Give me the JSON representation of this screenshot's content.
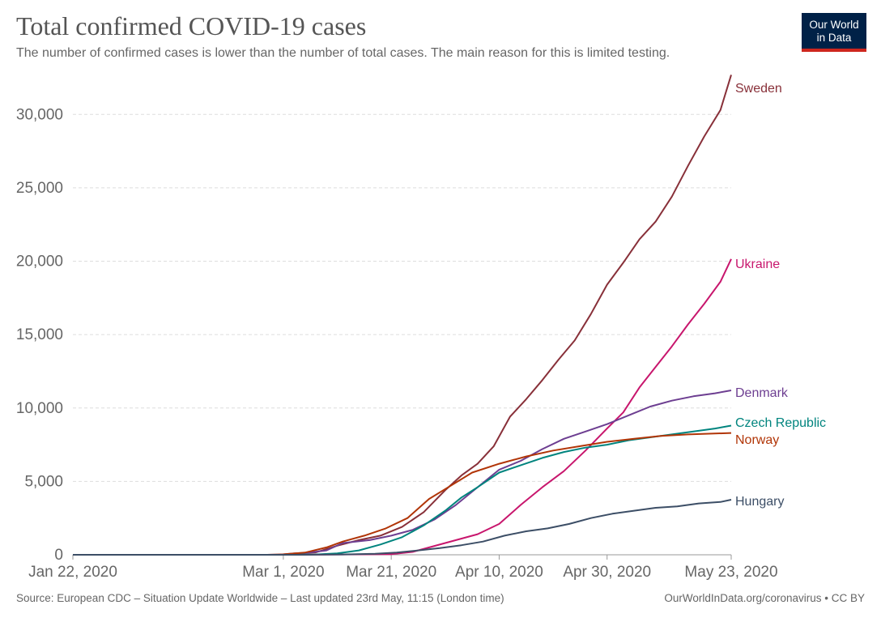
{
  "header": {
    "title": "Total confirmed COVID-19 cases",
    "subtitle": "The number of confirmed cases is lower than the number of total cases. The main reason for this is limited testing."
  },
  "logo": {
    "line1": "Our World",
    "line2": "in Data",
    "bg_color": "#002147",
    "accent_color": "#ce261e"
  },
  "footer": {
    "source": "Source: European CDC – Situation Update Worldwide – Last updated 23rd May, 11:15 (London time)",
    "link": "OurWorldInData.org/coronavirus • CC BY"
  },
  "chart_data": {
    "type": "line",
    "title": "Total confirmed COVID-19 cases",
    "xlabel": "",
    "ylabel": "",
    "x_type": "date",
    "xlim": [
      "2020-01-22",
      "2020-05-23"
    ],
    "ylim": [
      0,
      32500
    ],
    "grid": "horizontal dashed",
    "y_ticks": [
      {
        "value": 0,
        "label": "0"
      },
      {
        "value": 5000,
        "label": "5,000"
      },
      {
        "value": 10000,
        "label": "10,000"
      },
      {
        "value": 15000,
        "label": "15,000"
      },
      {
        "value": 20000,
        "label": "20,000"
      },
      {
        "value": 25000,
        "label": "25,000"
      },
      {
        "value": 30000,
        "label": "30,000"
      }
    ],
    "x_ticks": [
      {
        "date": "2020-01-22",
        "label": "Jan 22, 2020"
      },
      {
        "date": "2020-03-01",
        "label": "Mar 1, 2020"
      },
      {
        "date": "2020-03-21",
        "label": "Mar 21, 2020"
      },
      {
        "date": "2020-04-10",
        "label": "Apr 10, 2020"
      },
      {
        "date": "2020-04-30",
        "label": "Apr 30, 2020"
      },
      {
        "date": "2020-05-23",
        "label": "May 23, 2020"
      }
    ],
    "legend": "inline labels at line ends (right)",
    "series": [
      {
        "name": "Sweden",
        "color": "#883039",
        "points": [
          [
            "2020-01-22",
            0
          ],
          [
            "2020-02-29",
            0
          ],
          [
            "2020-03-03",
            100
          ],
          [
            "2020-03-07",
            160
          ],
          [
            "2020-03-11",
            620
          ],
          [
            "2020-03-15",
            1000
          ],
          [
            "2020-03-19",
            1300
          ],
          [
            "2020-03-23",
            1900
          ],
          [
            "2020-03-27",
            2900
          ],
          [
            "2020-03-31",
            4400
          ],
          [
            "2020-04-03",
            5400
          ],
          [
            "2020-04-06",
            6200
          ],
          [
            "2020-04-09",
            7400
          ],
          [
            "2020-04-12",
            9400
          ],
          [
            "2020-04-15",
            10600
          ],
          [
            "2020-04-18",
            11900
          ],
          [
            "2020-04-21",
            13300
          ],
          [
            "2020-04-24",
            14600
          ],
          [
            "2020-04-27",
            16400
          ],
          [
            "2020-04-30",
            18400
          ],
          [
            "2020-05-03",
            19900
          ],
          [
            "2020-05-06",
            21500
          ],
          [
            "2020-05-09",
            22700
          ],
          [
            "2020-05-12",
            24400
          ],
          [
            "2020-05-15",
            26500
          ],
          [
            "2020-05-18",
            28500
          ],
          [
            "2020-05-21",
            30300
          ],
          [
            "2020-05-23",
            32700
          ]
        ]
      },
      {
        "name": "Ukraine",
        "color": "#c8166d",
        "points": [
          [
            "2020-01-22",
            0
          ],
          [
            "2020-03-03",
            0
          ],
          [
            "2020-03-15",
            30
          ],
          [
            "2020-03-21",
            40
          ],
          [
            "2020-03-25",
            200
          ],
          [
            "2020-03-29",
            600
          ],
          [
            "2020-04-02",
            1000
          ],
          [
            "2020-04-06",
            1400
          ],
          [
            "2020-04-10",
            2100
          ],
          [
            "2020-04-14",
            3400
          ],
          [
            "2020-04-18",
            4600
          ],
          [
            "2020-04-22",
            5700
          ],
          [
            "2020-04-26",
            7100
          ],
          [
            "2020-04-30",
            8600
          ],
          [
            "2020-05-03",
            9700
          ],
          [
            "2020-05-06",
            11400
          ],
          [
            "2020-05-09",
            12800
          ],
          [
            "2020-05-12",
            14200
          ],
          [
            "2020-05-15",
            15700
          ],
          [
            "2020-05-18",
            17100
          ],
          [
            "2020-05-21",
            18600
          ],
          [
            "2020-05-23",
            20150
          ]
        ]
      },
      {
        "name": "Denmark",
        "color": "#6d3e91",
        "points": [
          [
            "2020-01-22",
            0
          ],
          [
            "2020-02-27",
            0
          ],
          [
            "2020-03-03",
            30
          ],
          [
            "2020-03-09",
            300
          ],
          [
            "2020-03-12",
            800
          ],
          [
            "2020-03-17",
            1000
          ],
          [
            "2020-03-21",
            1300
          ],
          [
            "2020-03-25",
            1700
          ],
          [
            "2020-03-29",
            2400
          ],
          [
            "2020-04-02",
            3400
          ],
          [
            "2020-04-06",
            4600
          ],
          [
            "2020-04-10",
            5800
          ],
          [
            "2020-04-14",
            6400
          ],
          [
            "2020-04-18",
            7200
          ],
          [
            "2020-04-22",
            7900
          ],
          [
            "2020-04-26",
            8400
          ],
          [
            "2020-04-30",
            8900
          ],
          [
            "2020-05-04",
            9500
          ],
          [
            "2020-05-08",
            10100
          ],
          [
            "2020-05-12",
            10500
          ],
          [
            "2020-05-16",
            10800
          ],
          [
            "2020-05-20",
            11000
          ],
          [
            "2020-05-23",
            11200
          ]
        ]
      },
      {
        "name": "Czech Republic",
        "color": "#00847e",
        "points": [
          [
            "2020-01-22",
            0
          ],
          [
            "2020-03-01",
            0
          ],
          [
            "2020-03-07",
            20
          ],
          [
            "2020-03-11",
            100
          ],
          [
            "2020-03-15",
            300
          ],
          [
            "2020-03-19",
            700
          ],
          [
            "2020-03-23",
            1200
          ],
          [
            "2020-03-27",
            2000
          ],
          [
            "2020-03-31",
            3000
          ],
          [
            "2020-04-03",
            3900
          ],
          [
            "2020-04-06",
            4600
          ],
          [
            "2020-04-10",
            5600
          ],
          [
            "2020-04-14",
            6100
          ],
          [
            "2020-04-18",
            6600
          ],
          [
            "2020-04-22",
            7000
          ],
          [
            "2020-04-26",
            7300
          ],
          [
            "2020-04-30",
            7500
          ],
          [
            "2020-05-04",
            7800
          ],
          [
            "2020-05-08",
            8000
          ],
          [
            "2020-05-12",
            8200
          ],
          [
            "2020-05-16",
            8400
          ],
          [
            "2020-05-20",
            8600
          ],
          [
            "2020-05-23",
            8800
          ]
        ]
      },
      {
        "name": "Norway",
        "color": "#b13507",
        "points": [
          [
            "2020-01-22",
            0
          ],
          [
            "2020-02-27",
            0
          ],
          [
            "2020-03-01",
            30
          ],
          [
            "2020-03-05",
            150
          ],
          [
            "2020-03-09",
            500
          ],
          [
            "2020-03-12",
            900
          ],
          [
            "2020-03-16",
            1300
          ],
          [
            "2020-03-20",
            1800
          ],
          [
            "2020-03-24",
            2500
          ],
          [
            "2020-03-28",
            3800
          ],
          [
            "2020-04-01",
            4700
          ],
          [
            "2020-04-05",
            5600
          ],
          [
            "2020-04-10",
            6200
          ],
          [
            "2020-04-15",
            6700
          ],
          [
            "2020-04-20",
            7100
          ],
          [
            "2020-04-25",
            7400
          ],
          [
            "2020-04-30",
            7700
          ],
          [
            "2020-05-05",
            7900
          ],
          [
            "2020-05-10",
            8100
          ],
          [
            "2020-05-15",
            8200
          ],
          [
            "2020-05-23",
            8300
          ]
        ]
      },
      {
        "name": "Hungary",
        "color": "#3c4e66",
        "points": [
          [
            "2020-01-22",
            0
          ],
          [
            "2020-03-04",
            0
          ],
          [
            "2020-03-12",
            20
          ],
          [
            "2020-03-18",
            70
          ],
          [
            "2020-03-22",
            150
          ],
          [
            "2020-03-26",
            300
          ],
          [
            "2020-03-30",
            450
          ],
          [
            "2020-04-03",
            650
          ],
          [
            "2020-04-07",
            900
          ],
          [
            "2020-04-11",
            1300
          ],
          [
            "2020-04-15",
            1600
          ],
          [
            "2020-04-19",
            1800
          ],
          [
            "2020-04-23",
            2100
          ],
          [
            "2020-04-27",
            2500
          ],
          [
            "2020-05-01",
            2800
          ],
          [
            "2020-05-05",
            3000
          ],
          [
            "2020-05-09",
            3200
          ],
          [
            "2020-05-13",
            3300
          ],
          [
            "2020-05-17",
            3500
          ],
          [
            "2020-05-21",
            3600
          ],
          [
            "2020-05-23",
            3750
          ]
        ]
      }
    ]
  }
}
